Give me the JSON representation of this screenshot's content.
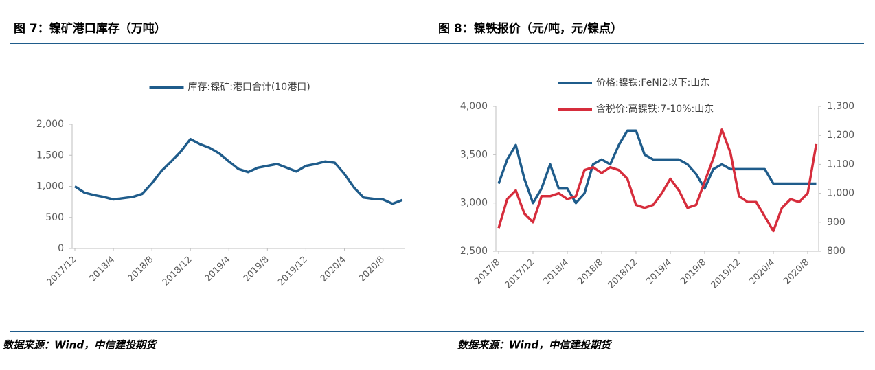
{
  "chart_data": [
    {
      "type": "line",
      "title": "图 7：镍矿港口库存（万吨）",
      "source": "数据来源：Wind，中信建投期货",
      "legend": "top",
      "categories": [
        "2017/12",
        null,
        null,
        null,
        "2018/4",
        null,
        null,
        null,
        "2018/8",
        null,
        null,
        null,
        "2018/12",
        null,
        null,
        null,
        "2019/4",
        null,
        null,
        null,
        "2019/8",
        null,
        null,
        null,
        "2019/12",
        null,
        null,
        null,
        "2020/4",
        null,
        null,
        null,
        "2020/8",
        null,
        null
      ],
      "series": [
        {
          "name": "库存:镍矿:港口合计(10港口)",
          "color": "#1f5c8b",
          "values": [
            1000,
            900,
            860,
            830,
            790,
            810,
            830,
            880,
            1050,
            1250,
            1400,
            1560,
            1760,
            1680,
            1620,
            1530,
            1400,
            1280,
            1230,
            1300,
            1330,
            1360,
            1300,
            1240,
            1330,
            1360,
            1400,
            1380,
            1200,
            980,
            820,
            800,
            790,
            720,
            780
          ]
        }
      ],
      "ylim": [
        0,
        2000
      ],
      "yticks": [
        0,
        500,
        {
          "value": 1000,
          "label": "1,000"
        },
        {
          "value": 1500,
          "label": "1,500"
        },
        {
          "value": 2000,
          "label": "2,000"
        }
      ]
    },
    {
      "type": "line",
      "title": "图 8：镍铁报价（元/吨，元/镍点）",
      "source": "数据来源：Wind，中信建投期货",
      "legend": "top-left",
      "categories": [
        "2017/8",
        null,
        null,
        null,
        "2017/12",
        null,
        null,
        null,
        "2018/4",
        null,
        null,
        null,
        "2018/8",
        null,
        null,
        null,
        "2018/12",
        null,
        null,
        null,
        "2019/4",
        null,
        null,
        null,
        "2019/8",
        null,
        null,
        null,
        "2019/12",
        null,
        null,
        null,
        "2020/4",
        null,
        null,
        null,
        "2020/8",
        null
      ],
      "series": [
        {
          "name": "价格:镍铁:FeNi2以下:山东",
          "color": "#1f5c8b",
          "values": [
            3200,
            3450,
            3600,
            3250,
            3000,
            3150,
            3400,
            3150,
            3150,
            3000,
            3100,
            3400,
            3450,
            3400,
            3600,
            3750,
            3750,
            3500,
            3450,
            3450,
            3450,
            3450,
            3400,
            3300,
            3150,
            3350,
            3400,
            3350,
            3350,
            3350,
            3350,
            3350,
            3200,
            3200,
            3200,
            3200,
            3200,
            3200
          ]
        },
        {
          "name": "含税价:高镍铁:7-10%:山东",
          "color": "#d62d3c",
          "axis": "y2",
          "values": [
            880,
            980,
            1010,
            930,
            900,
            990,
            990,
            1000,
            980,
            990,
            1080,
            1090,
            1070,
            1090,
            1080,
            1050,
            960,
            950,
            960,
            1000,
            1050,
            1010,
            950,
            960,
            1040,
            1120,
            1220,
            1140,
            990,
            970,
            970,
            920,
            870,
            950,
            980,
            970,
            1000,
            1170
          ]
        }
      ],
      "ylim": [
        2500,
        4000
      ],
      "yticks": [
        {
          "value": 2500,
          "label": "2,500"
        },
        {
          "value": 3000,
          "label": "3,000"
        },
        {
          "value": 3500,
          "label": "3,500"
        },
        {
          "value": 4000,
          "label": "4,000"
        }
      ],
      "y2lim": [
        800,
        1300
      ],
      "y2ticks": [
        800,
        900,
        {
          "value": 1000,
          "label": "1,000"
        },
        {
          "value": 1100,
          "label": "1,100"
        },
        {
          "value": 1200,
          "label": "1,200"
        },
        {
          "value": 1300,
          "label": "1,300"
        }
      ]
    }
  ]
}
